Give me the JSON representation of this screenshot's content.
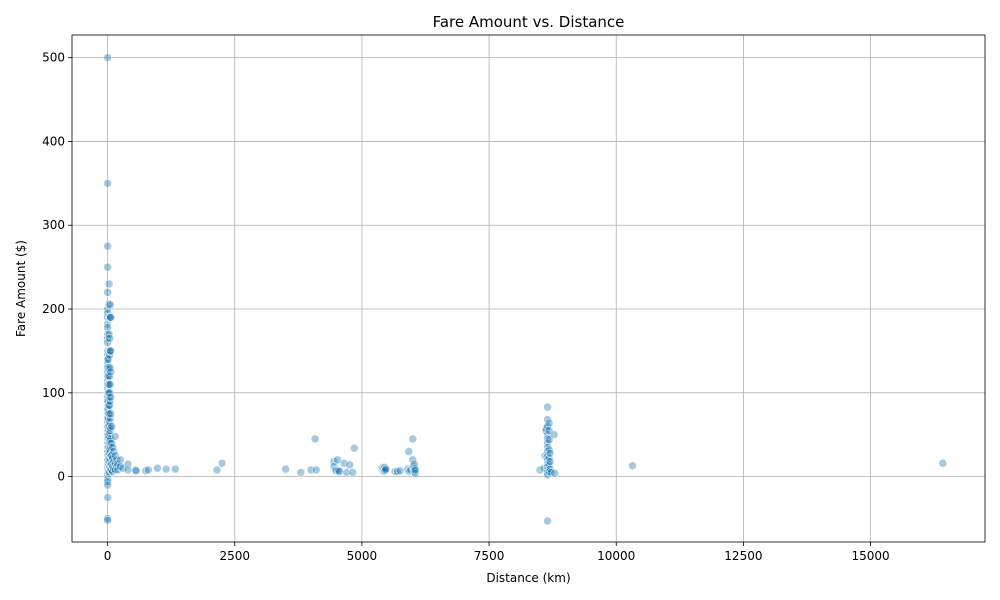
{
  "chart_data": {
    "type": "scatter",
    "title": "Fare Amount vs. Distance",
    "xlabel": "Distance (km)",
    "ylabel": "Fare Amount ($)",
    "xlim": [
      -700,
      17250
    ],
    "ylim": [
      -78,
      527
    ],
    "xticks": [
      0,
      2500,
      5000,
      7500,
      10000,
      12500,
      15000
    ],
    "xtick_labels": [
      "0",
      "2500",
      "5000",
      "7500",
      "10000",
      "12500",
      "15000"
    ],
    "yticks": [
      0,
      100,
      200,
      300,
      400,
      500
    ],
    "ytick_labels": [
      "0",
      "100",
      "200",
      "300",
      "400",
      "500"
    ],
    "grid": true,
    "point_color": "#1f77b4",
    "point_edge_color": "#ffffff",
    "point_opacity": 0.4,
    "series": [
      {
        "points": [
          [
            0,
            500
          ],
          [
            0,
            350
          ],
          [
            0,
            275
          ],
          [
            0,
            250
          ],
          [
            0,
            220
          ],
          [
            0,
            200
          ],
          [
            0,
            195
          ],
          [
            0,
            190
          ],
          [
            0,
            182
          ],
          [
            0,
            178
          ],
          [
            0,
            170
          ],
          [
            0,
            165
          ],
          [
            0,
            160
          ],
          [
            0,
            150
          ],
          [
            0,
            145
          ],
          [
            0,
            140
          ],
          [
            0,
            135
          ],
          [
            0,
            130
          ],
          [
            0,
            125
          ],
          [
            0,
            120
          ],
          [
            0,
            115
          ],
          [
            0,
            110
          ],
          [
            0,
            105
          ],
          [
            0,
            100
          ],
          [
            0,
            95
          ],
          [
            0,
            90
          ],
          [
            0,
            85
          ],
          [
            0,
            80
          ],
          [
            0,
            75
          ],
          [
            0,
            70
          ],
          [
            0,
            65
          ],
          [
            0,
            60
          ],
          [
            0,
            55
          ],
          [
            0,
            50
          ],
          [
            0,
            45
          ],
          [
            0,
            40
          ],
          [
            0,
            35
          ],
          [
            0,
            30
          ],
          [
            0,
            25
          ],
          [
            0,
            20
          ],
          [
            0,
            15
          ],
          [
            0,
            10
          ],
          [
            0,
            5
          ],
          [
            0,
            2
          ],
          [
            0,
            -3
          ],
          [
            0,
            -6
          ],
          [
            0,
            -10
          ],
          [
            0,
            -25
          ],
          [
            0,
            -50
          ],
          [
            0,
            -52
          ],
          [
            10,
            140
          ],
          [
            10,
            130
          ],
          [
            10,
            120
          ],
          [
            10,
            110
          ],
          [
            10,
            100
          ],
          [
            10,
            90
          ],
          [
            10,
            80
          ],
          [
            10,
            70
          ],
          [
            10,
            60
          ],
          [
            10,
            50
          ],
          [
            10,
            40
          ],
          [
            10,
            30
          ],
          [
            10,
            20
          ],
          [
            10,
            12
          ],
          [
            10,
            6
          ],
          [
            20,
            100
          ],
          [
            20,
            85
          ],
          [
            20,
            75
          ],
          [
            20,
            55
          ],
          [
            20,
            45
          ],
          [
            20,
            35
          ],
          [
            20,
            25
          ],
          [
            20,
            15
          ],
          [
            20,
            8
          ],
          [
            30,
            230
          ],
          [
            30,
            206
          ],
          [
            30,
            170
          ],
          [
            30,
            150
          ],
          [
            30,
            128
          ],
          [
            30,
            110
          ],
          [
            30,
            95
          ],
          [
            30,
            75
          ],
          [
            30,
            60
          ],
          [
            30,
            48
          ],
          [
            30,
            40
          ],
          [
            30,
            28
          ],
          [
            30,
            18
          ],
          [
            30,
            10
          ],
          [
            30,
            4
          ],
          [
            40,
            190
          ],
          [
            40,
            165
          ],
          [
            40,
            145
          ],
          [
            40,
            120
          ],
          [
            40,
            100
          ],
          [
            40,
            85
          ],
          [
            40,
            65
          ],
          [
            40,
            52
          ],
          [
            40,
            42
          ],
          [
            40,
            32
          ],
          [
            40,
            22
          ],
          [
            40,
            12
          ],
          [
            40,
            6
          ],
          [
            50,
            205
          ],
          [
            50,
            190
          ],
          [
            50,
            150
          ],
          [
            50,
            130
          ],
          [
            50,
            110
          ],
          [
            50,
            90
          ],
          [
            50,
            70
          ],
          [
            50,
            55
          ],
          [
            50,
            40
          ],
          [
            50,
            30
          ],
          [
            50,
            20
          ],
          [
            50,
            10
          ],
          [
            60,
            190
          ],
          [
            60,
            150
          ],
          [
            60,
            125
          ],
          [
            60,
            95
          ],
          [
            60,
            75
          ],
          [
            60,
            58
          ],
          [
            60,
            45
          ],
          [
            60,
            35
          ],
          [
            60,
            25
          ],
          [
            60,
            15
          ],
          [
            60,
            8
          ],
          [
            80,
            60
          ],
          [
            80,
            40
          ],
          [
            80,
            25
          ],
          [
            80,
            15
          ],
          [
            80,
            8
          ],
          [
            100,
            35
          ],
          [
            100,
            22
          ],
          [
            100,
            12
          ],
          [
            100,
            6
          ],
          [
            120,
            30
          ],
          [
            120,
            18
          ],
          [
            120,
            10
          ],
          [
            150,
            48
          ],
          [
            150,
            25
          ],
          [
            150,
            15
          ],
          [
            150,
            8
          ],
          [
            180,
            20
          ],
          [
            180,
            12
          ],
          [
            200,
            15
          ],
          [
            200,
            8
          ],
          [
            250,
            20
          ],
          [
            250,
            12
          ],
          [
            300,
            10
          ],
          [
            400,
            15
          ],
          [
            400,
            8
          ],
          [
            550,
            8
          ],
          [
            560,
            7
          ],
          [
            750,
            7
          ],
          [
            800,
            8
          ],
          [
            980,
            10
          ],
          [
            1150,
            9
          ],
          [
            1330,
            9
          ],
          [
            2150,
            8
          ],
          [
            2250,
            16
          ],
          [
            3500,
            9
          ],
          [
            3800,
            5
          ],
          [
            4000,
            8
          ],
          [
            4080,
            45
          ],
          [
            4100,
            8
          ],
          [
            4450,
            18
          ],
          [
            4450,
            12
          ],
          [
            4480,
            8
          ],
          [
            4500,
            7
          ],
          [
            4520,
            20
          ],
          [
            4540,
            7
          ],
          [
            4560,
            6
          ],
          [
            4650,
            16
          ],
          [
            4700,
            5
          ],
          [
            4760,
            14
          ],
          [
            4820,
            5
          ],
          [
            4850,
            34
          ],
          [
            5400,
            11
          ],
          [
            5400,
            8
          ],
          [
            5410,
            10
          ],
          [
            5420,
            9
          ],
          [
            5430,
            7
          ],
          [
            5440,
            6
          ],
          [
            5450,
            11
          ],
          [
            5450,
            7
          ],
          [
            5460,
            8
          ],
          [
            5470,
            9
          ],
          [
            5650,
            6
          ],
          [
            5700,
            6
          ],
          [
            5750,
            7
          ],
          [
            5900,
            9
          ],
          [
            5920,
            30
          ],
          [
            5930,
            6
          ],
          [
            5960,
            8
          ],
          [
            6000,
            45
          ],
          [
            6000,
            20
          ],
          [
            6010,
            12
          ],
          [
            6020,
            8
          ],
          [
            6030,
            15
          ],
          [
            6030,
            6
          ],
          [
            6040,
            10
          ],
          [
            6050,
            4
          ],
          [
            6050,
            8
          ],
          [
            8500,
            8
          ],
          [
            8580,
            10
          ],
          [
            8600,
            25
          ],
          [
            8620,
            58
          ],
          [
            8620,
            55
          ],
          [
            8650,
            83
          ],
          [
            8650,
            68
          ],
          [
            8650,
            60
          ],
          [
            8650,
            50
          ],
          [
            8650,
            45
          ],
          [
            8650,
            40
          ],
          [
            8650,
            35
          ],
          [
            8650,
            30
          ],
          [
            8650,
            25
          ],
          [
            8650,
            20
          ],
          [
            8650,
            15
          ],
          [
            8650,
            12
          ],
          [
            8650,
            8
          ],
          [
            8650,
            5
          ],
          [
            8650,
            2
          ],
          [
            8650,
            -53
          ],
          [
            8680,
            64
          ],
          [
            8680,
            55
          ],
          [
            8680,
            44
          ],
          [
            8680,
            32
          ],
          [
            8680,
            22
          ],
          [
            8680,
            14
          ],
          [
            8680,
            6
          ],
          [
            8700,
            28
          ],
          [
            8700,
            18
          ],
          [
            8700,
            9
          ],
          [
            8720,
            5
          ],
          [
            8780,
            50
          ],
          [
            8790,
            4
          ],
          [
            10320,
            13
          ],
          [
            16420,
            16
          ]
        ]
      }
    ]
  }
}
